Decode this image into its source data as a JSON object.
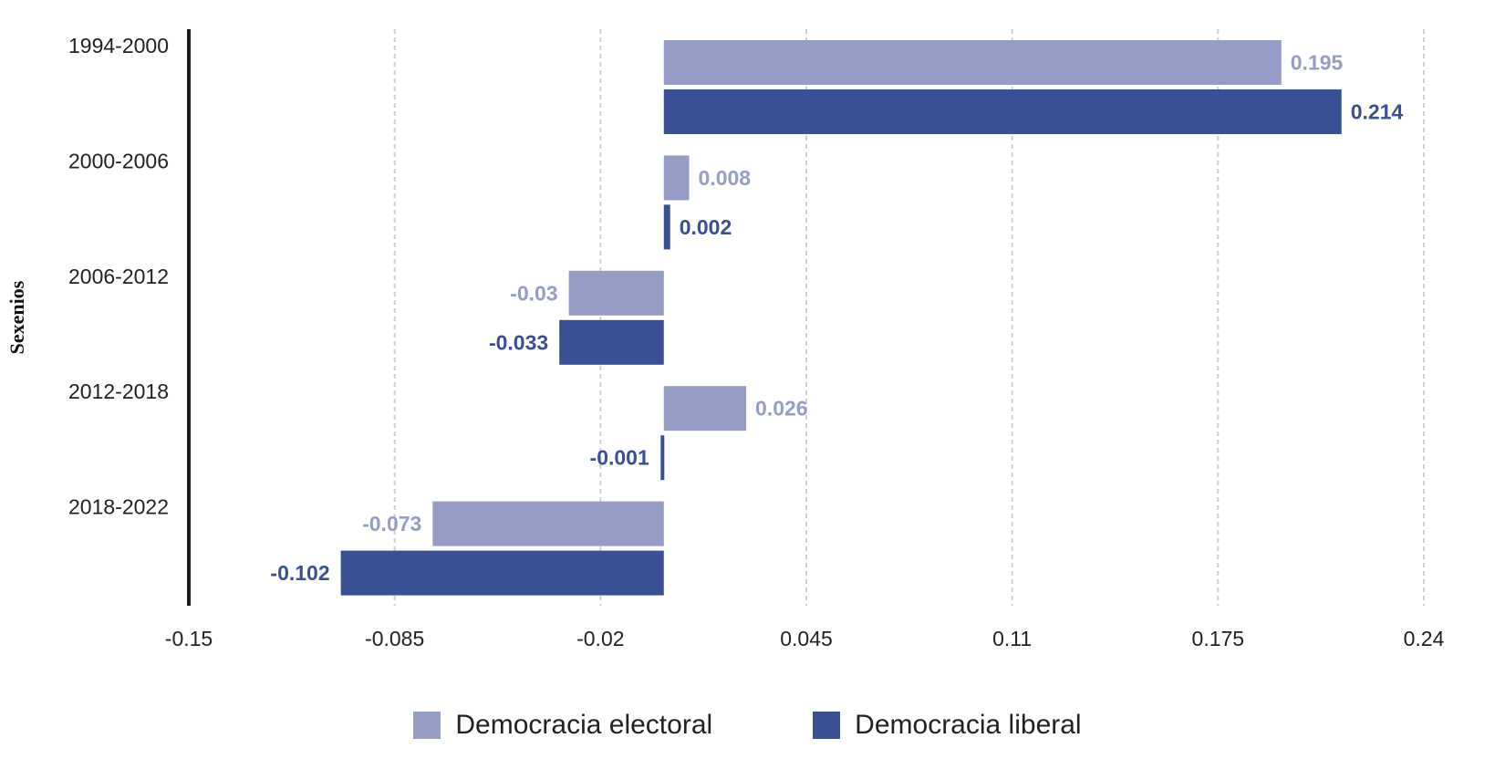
{
  "chart_data": {
    "type": "bar",
    "orientation": "horizontal",
    "categories": [
      "1994-2000",
      "2000-2006",
      "2006-2012",
      "2012-2018",
      "2018-2022"
    ],
    "series": [
      {
        "name": "Democracia electoral",
        "color": "#959cc5",
        "values": [
          0.195,
          0.008,
          -0.03,
          0.026,
          -0.073
        ],
        "labels": [
          "0.195",
          "0.008",
          "-0.03",
          "0.026",
          "-0.073"
        ]
      },
      {
        "name": "Democracia liberal",
        "color": "#3a5094",
        "values": [
          0.214,
          0.002,
          -0.033,
          -0.001,
          -0.102
        ],
        "labels": [
          "0.214",
          "0.002",
          "-0.033",
          "-0.001",
          "-0.102"
        ]
      }
    ],
    "xlim": [
      -0.15,
      0.24
    ],
    "xticks": [
      -0.15,
      -0.085,
      -0.02,
      0.045,
      0.11,
      0.175,
      0.24
    ],
    "xtick_labels": [
      "-0.15",
      "-0.085",
      "-0.02",
      "0.045",
      "0.11",
      "0.175",
      "0.24"
    ],
    "ylabel": "Sexenios",
    "xlabel": "",
    "grid": "vertical-dashed",
    "legend_position": "bottom-center"
  }
}
